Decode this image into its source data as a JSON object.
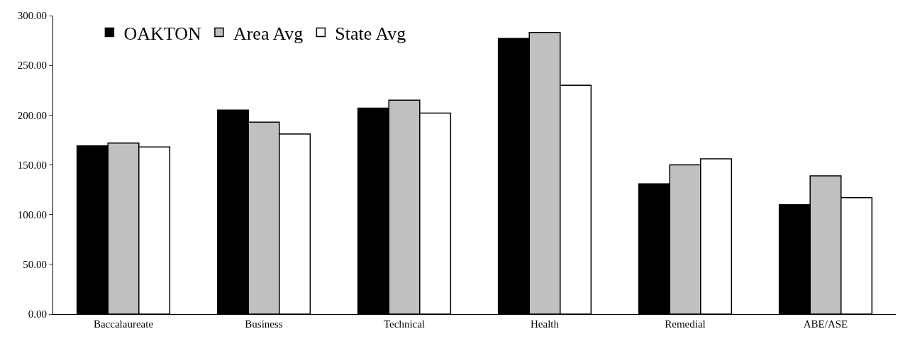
{
  "chart_data": {
    "type": "bar",
    "categories": [
      "Baccalaureate",
      "Business",
      "Technical",
      "Health",
      "Remedial",
      "ABE/ASE"
    ],
    "series": [
      {
        "name": "OAKTON",
        "color": "#000000",
        "values": [
          169,
          205,
          207,
          277,
          131,
          110
        ]
      },
      {
        "name": "Area Avg",
        "color": "#c0c0c0",
        "values": [
          172,
          193,
          215,
          283,
          150,
          139
        ]
      },
      {
        "name": "State Avg",
        "color": "#ffffff",
        "values": [
          168,
          181,
          202,
          230,
          156,
          117
        ]
      }
    ],
    "ylim": [
      0,
      300
    ],
    "yticks": [
      {
        "value": 0,
        "label": "0.00"
      },
      {
        "value": 50,
        "label": "50.00"
      },
      {
        "value": 100,
        "label": "100.00"
      },
      {
        "value": 150,
        "label": "150.00"
      },
      {
        "value": 200,
        "label": "200.00"
      },
      {
        "value": 250,
        "label": "250.00"
      },
      {
        "value": 300,
        "label": "300.00"
      }
    ],
    "legend": "top left"
  }
}
